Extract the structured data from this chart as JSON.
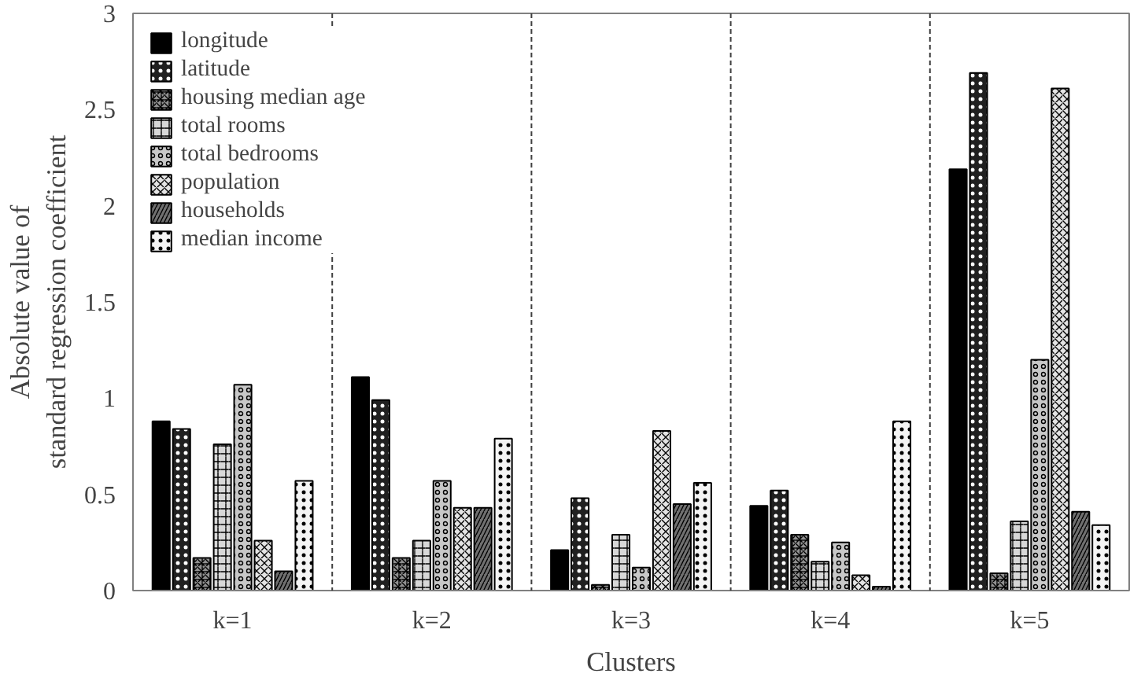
{
  "chart_data": {
    "type": "bar",
    "xlabel": "Clusters",
    "ylabel": "Absolute value of\nstandard regression coefficient",
    "categories": [
      "k=1",
      "k=2",
      "k=3",
      "k=4",
      "k=5"
    ],
    "series": [
      {
        "name": "longitude",
        "color": "#000000",
        "values": [
          0.88,
          1.11,
          0.21,
          0.44,
          2.19
        ]
      },
      {
        "name": "latitude",
        "color": "#202020",
        "values": [
          0.84,
          0.99,
          0.48,
          0.52,
          2.69
        ]
      },
      {
        "name": "housing median age",
        "color": "#909090",
        "values": [
          0.17,
          0.17,
          0.03,
          0.29,
          0.09
        ]
      },
      {
        "name": "total rooms",
        "color": "#d8d8d8",
        "values": [
          0.76,
          0.26,
          0.29,
          0.15,
          0.36
        ]
      },
      {
        "name": "total bedrooms",
        "color": "#c8c8c8",
        "values": [
          1.07,
          0.57,
          0.12,
          0.25,
          1.2
        ]
      },
      {
        "name": "population",
        "color": "#e4e4e4",
        "values": [
          0.26,
          0.43,
          0.83,
          0.08,
          2.61
        ]
      },
      {
        "name": "households",
        "color": "#707070",
        "values": [
          0.1,
          0.43,
          0.45,
          0.02,
          0.41
        ]
      },
      {
        "name": "median income",
        "color": "#f4f4f4",
        "values": [
          0.57,
          0.79,
          0.56,
          0.88,
          0.34
        ]
      }
    ],
    "ylim": [
      0,
      3
    ],
    "yticks": [
      0,
      0.5,
      1,
      1.5,
      2,
      2.5,
      3
    ],
    "grid": "x",
    "legend": "top left"
  }
}
